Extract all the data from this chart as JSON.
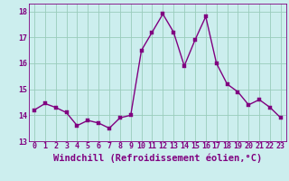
{
  "x": [
    0,
    1,
    2,
    3,
    4,
    5,
    6,
    7,
    8,
    9,
    10,
    11,
    12,
    13,
    14,
    15,
    16,
    17,
    18,
    19,
    20,
    21,
    22,
    23
  ],
  "y": [
    14.2,
    14.45,
    14.3,
    14.1,
    13.6,
    13.8,
    13.7,
    13.5,
    13.9,
    14.0,
    16.5,
    17.2,
    17.9,
    17.2,
    15.9,
    16.9,
    17.8,
    16.0,
    15.2,
    14.9,
    14.4,
    14.6,
    14.3,
    13.9
  ],
  "line_color": "#800080",
  "marker": "s",
  "marker_size": 2.2,
  "background_color": "#cceeee",
  "grid_color": "#99ccbb",
  "xlabel": "Windchill (Refroidissement éolien,°C)",
  "xlim": [
    -0.5,
    23.5
  ],
  "ylim": [
    13.0,
    18.3
  ],
  "yticks": [
    13,
    14,
    15,
    16,
    17,
    18
  ],
  "xticks": [
    0,
    1,
    2,
    3,
    4,
    5,
    6,
    7,
    8,
    9,
    10,
    11,
    12,
    13,
    14,
    15,
    16,
    17,
    18,
    19,
    20,
    21,
    22,
    23
  ],
  "tick_color": "#800080",
  "tick_size": 6.0,
  "xlabel_size": 7.5,
  "line_width": 1.0
}
